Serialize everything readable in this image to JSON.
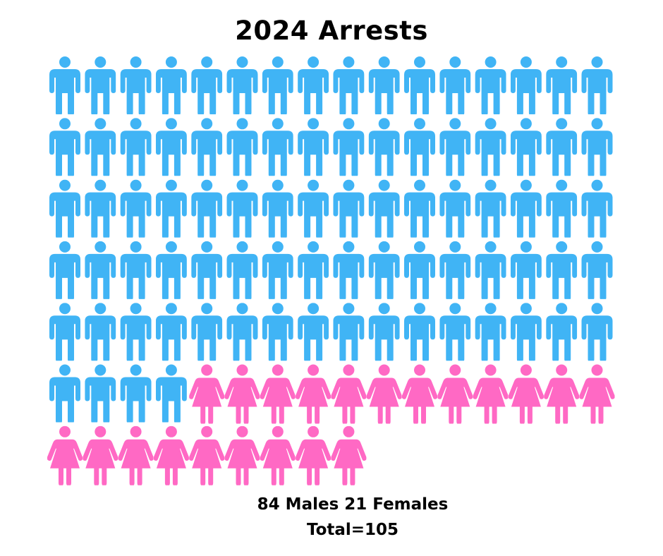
{
  "chart_data": {
    "type": "pictogram",
    "title": "2024 Arrests",
    "columns": 16,
    "series": [
      {
        "name": "Males",
        "value": 84,
        "color": "#40b4f5",
        "icon": "male-person-icon"
      },
      {
        "name": "Females",
        "value": 21,
        "color": "#ff69c4",
        "icon": "female-person-icon"
      }
    ],
    "total": 105
  },
  "caption": {
    "line1": "84 Males 21 Females",
    "line2": "Total=105"
  }
}
